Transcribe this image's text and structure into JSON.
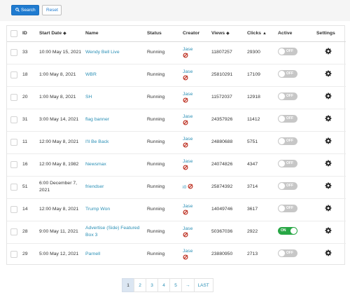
{
  "toolbar": {
    "search_label": "Search",
    "reset_label": "Reset"
  },
  "table": {
    "headers": {
      "id": "ID",
      "start_date": "Start Date",
      "name": "Name",
      "status": "Status",
      "creator": "Creator",
      "views": "Views",
      "clicks": "Clicks",
      "active": "Active",
      "settings": "Settings"
    },
    "rows": [
      {
        "id": "33",
        "start_date": "10:00 May 15, 2021",
        "name": "Wendy Bell Live",
        "status": "Running",
        "creator": "Jase",
        "views": "11807257",
        "clicks": "29300",
        "active": "OFF"
      },
      {
        "id": "18",
        "start_date": "1:00 May 8, 2021",
        "name": "WBR",
        "status": "Running",
        "creator": "Jase",
        "views": "25810291",
        "clicks": "17109",
        "active": "OFF"
      },
      {
        "id": "20",
        "start_date": "1:00 May 8, 2021",
        "name": "SH",
        "status": "Running",
        "creator": "Jase",
        "views": "11572037",
        "clicks": "12918",
        "active": "OFF"
      },
      {
        "id": "31",
        "start_date": "3:00 May 14, 2021",
        "name": "flag banner",
        "status": "Running",
        "creator": "Jase",
        "views": "24357926",
        "clicks": "11412",
        "active": "OFF"
      },
      {
        "id": "11",
        "start_date": "12:00 May 8, 2021",
        "name": "I'll Be Back",
        "status": "Running",
        "creator": "Jase",
        "views": "24880688",
        "clicks": "5751",
        "active": "OFF"
      },
      {
        "id": "16",
        "start_date": "12:00 May 8, 1982",
        "name": "Newsmax",
        "status": "Running",
        "creator": "Jase",
        "views": "24074826",
        "clicks": "4347",
        "active": "OFF"
      },
      {
        "id": "51",
        "start_date": "6:00 December 7, 2021",
        "name": "friendser",
        "status": "Running",
        "creator": "i0",
        "views": "25874392",
        "clicks": "3714",
        "active": "OFF"
      },
      {
        "id": "14",
        "start_date": "12:00 May 8, 2021",
        "name": "Trump Won",
        "status": "Running",
        "creator": "Jase",
        "views": "14049746",
        "clicks": "3617",
        "active": "OFF"
      },
      {
        "id": "28",
        "start_date": "9:00 May 11, 2021",
        "name": "Advertise (Side) Featured Box 3",
        "status": "Running",
        "creator": "Jase",
        "views": "50367036",
        "clicks": "2922",
        "active": "ON"
      },
      {
        "id": "29",
        "start_date": "5:00 May 12, 2021",
        "name": "Parnell",
        "status": "Running",
        "creator": "Jase",
        "views": "23880950",
        "clicks": "2713",
        "active": "OFF"
      }
    ]
  },
  "pagination": {
    "pages": [
      "1",
      "2",
      "3",
      "4",
      "5"
    ],
    "current": "1",
    "next_label": "→",
    "last_label": "LAST"
  },
  "colors": {
    "primary": "#1f7bd0",
    "link": "#2a8fb5",
    "toggle_on": "#28a745",
    "toggle_off": "#c7c7c7",
    "creator_icon": "#c0392b"
  }
}
